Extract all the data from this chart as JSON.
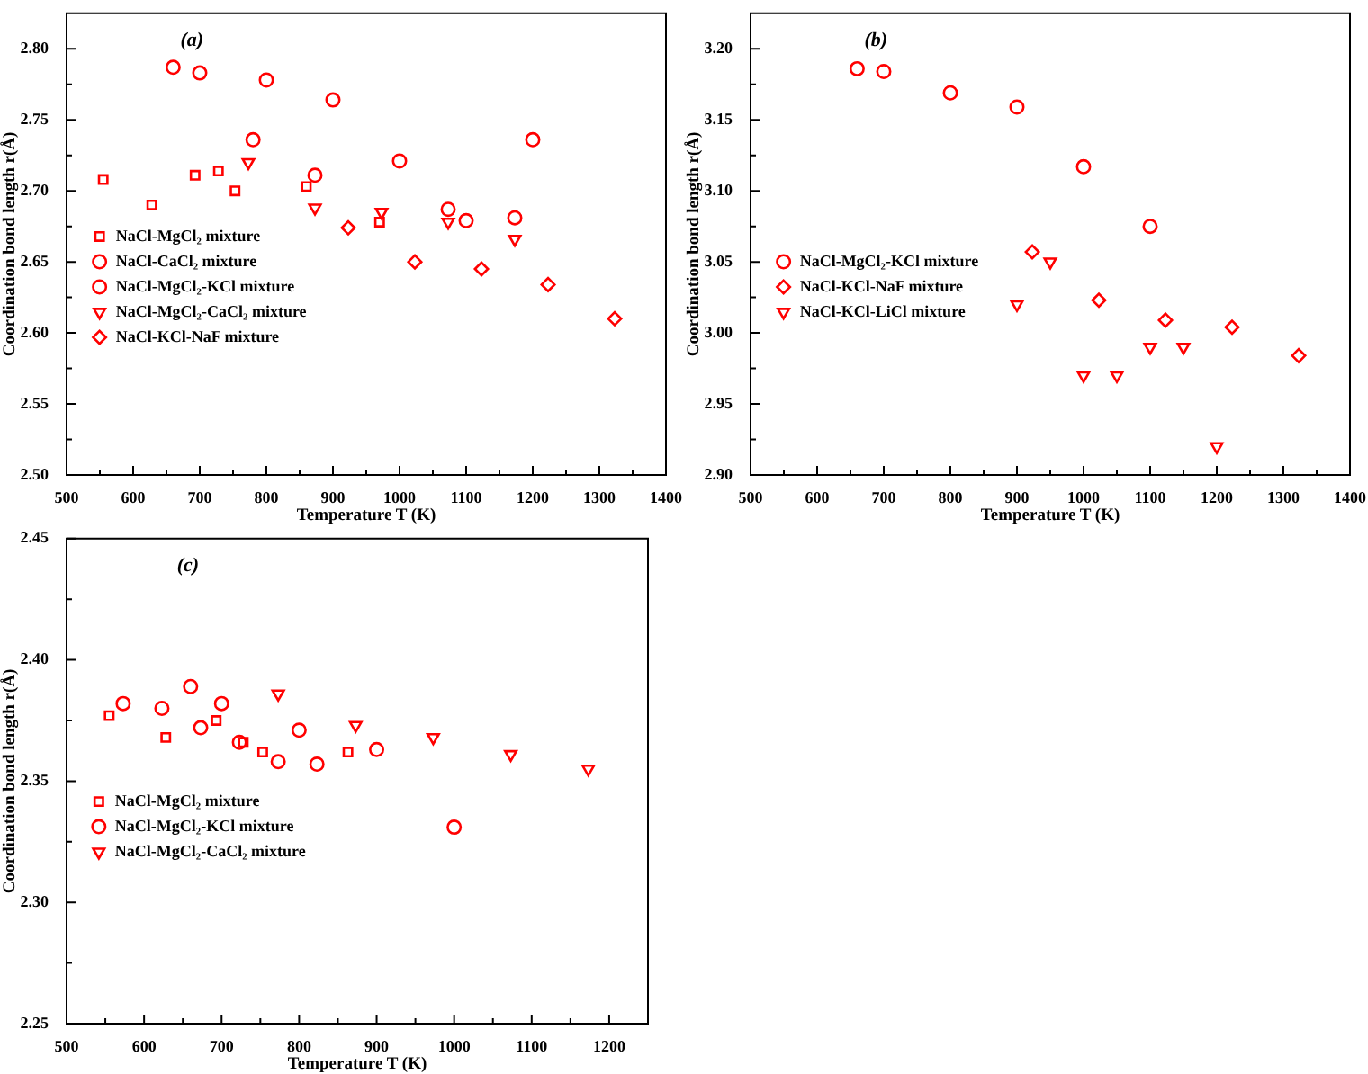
{
  "chart_data": [
    {
      "type": "scatter",
      "xlabel": "Temperature T (K)",
      "ylabel": "Coordination bond length r(Å)",
      "annotations": [
        "(a)"
      ],
      "legend": "left",
      "grid": false,
      "xlim": [
        500,
        1400
      ],
      "xticks": [
        500,
        {
          "value": 550,
          "label": null
        },
        600,
        {
          "value": 650,
          "label": null
        },
        700,
        {
          "value": 750,
          "label": null
        },
        800,
        {
          "value": 850,
          "label": null
        },
        900,
        {
          "value": 950,
          "label": null
        },
        1000,
        {
          "value": 1050,
          "label": null
        },
        1100,
        {
          "value": 1150,
          "label": null
        },
        1200,
        {
          "value": 1250,
          "label": null
        },
        1300,
        {
          "value": 1350,
          "label": null
        },
        1400
      ],
      "ylim": [
        2.5,
        2.825
      ],
      "yticks": [
        {
          "value": 2.5,
          "label": "2.50"
        },
        {
          "value": 2.525,
          "label": null
        },
        {
          "value": 2.55,
          "label": "2.55"
        },
        {
          "value": 2.575,
          "label": null
        },
        {
          "value": 2.6,
          "label": "2.60"
        },
        {
          "value": 2.625,
          "label": null
        },
        {
          "value": 2.65,
          "label": "2.65"
        },
        {
          "value": 2.675,
          "label": null
        },
        {
          "value": 2.7,
          "label": "2.70"
        },
        {
          "value": 2.725,
          "label": null
        },
        {
          "value": 2.75,
          "label": "2.75"
        },
        {
          "value": 2.775,
          "label": null
        },
        {
          "value": 2.8,
          "label": "2.80"
        }
      ],
      "series": [
        {
          "name": "NaCl-MgCl₂ mixture",
          "color": "#ff0000",
          "marker": "square",
          "x": [
            555,
            628,
            693,
            728,
            753,
            860,
            970
          ],
          "values": [
            2.708,
            2.69,
            2.711,
            2.714,
            2.7,
            2.703,
            2.678
          ]
        },
        {
          "name": "NaCl-CaCl₂ mixture",
          "color": "#ff0000",
          "marker": "circle",
          "x": [
            780,
            873,
            1073,
            1173
          ],
          "values": [
            2.736,
            2.711,
            2.687,
            2.681
          ]
        },
        {
          "name": "NaCl-MgCl₂-KCl mixture",
          "color": "#ff0000",
          "marker": "circle",
          "x": [
            660,
            700,
            800,
            900,
            1000,
            1100,
            1200
          ],
          "values": [
            2.787,
            2.783,
            2.778,
            2.764,
            2.721,
            2.679,
            2.736
          ]
        },
        {
          "name": "NaCl-MgCl₂-CaCl₂ mixture",
          "color": "#ff0000",
          "marker": "triangle",
          "x": [
            773,
            873,
            973,
            1073,
            1173
          ],
          "values": [
            2.72,
            2.688,
            2.685,
            2.678,
            2.666
          ]
        },
        {
          "name": "NaCl-KCl-NaF mixture",
          "color": "#ff0000",
          "marker": "diamond",
          "x": [
            923,
            1023,
            1123,
            1223,
            1323
          ],
          "values": [
            2.674,
            2.65,
            2.645,
            2.634,
            2.61
          ]
        }
      ]
    },
    {
      "type": "scatter",
      "xlabel": "Temperature T (K)",
      "ylabel": "Coordination bond length r(Å)",
      "annotations": [
        "(b)"
      ],
      "legend": "left",
      "grid": false,
      "xlim": [
        500,
        1400
      ],
      "xticks": [
        500,
        {
          "value": 550,
          "label": null
        },
        600,
        {
          "value": 650,
          "label": null
        },
        700,
        {
          "value": 750,
          "label": null
        },
        800,
        {
          "value": 850,
          "label": null
        },
        900,
        {
          "value": 950,
          "label": null
        },
        1000,
        {
          "value": 1050,
          "label": null
        },
        1100,
        {
          "value": 1150,
          "label": null
        },
        1200,
        {
          "value": 1250,
          "label": null
        },
        1300,
        {
          "value": 1350,
          "label": null
        },
        1400
      ],
      "ylim": [
        2.9,
        3.225
      ],
      "yticks": [
        {
          "value": 2.9,
          "label": "2.90"
        },
        {
          "value": 2.925,
          "label": null
        },
        {
          "value": 2.95,
          "label": "2.95"
        },
        {
          "value": 2.975,
          "label": null
        },
        {
          "value": 3.0,
          "label": "3.00"
        },
        {
          "value": 3.025,
          "label": null
        },
        {
          "value": 3.05,
          "label": "3.05"
        },
        {
          "value": 3.075,
          "label": null
        },
        {
          "value": 3.1,
          "label": "3.10"
        },
        {
          "value": 3.125,
          "label": null
        },
        {
          "value": 3.15,
          "label": "3.15"
        },
        {
          "value": 3.175,
          "label": null
        },
        {
          "value": 3.2,
          "label": "3.20"
        }
      ],
      "series": [
        {
          "name": "NaCl-MgCl₂-KCl mixture",
          "color": "#ff0000",
          "marker": "circle",
          "x": [
            660,
            700,
            800,
            900,
            1000,
            1100
          ],
          "values": [
            3.186,
            3.184,
            3.169,
            3.159,
            3.117,
            3.075
          ]
        },
        {
          "name": "NaCl-KCl-NaF mixture",
          "color": "#ff0000",
          "marker": "diamond",
          "x": [
            923,
            1023,
            1123,
            1223,
            1323
          ],
          "values": [
            3.057,
            3.023,
            3.009,
            3.004,
            2.984
          ]
        },
        {
          "name": "NaCl-KCl-LiCl mixture",
          "color": "#ff0000",
          "marker": "triangle",
          "x": [
            900,
            950,
            1000,
            1050,
            1100,
            1150,
            1200
          ],
          "values": [
            3.02,
            3.05,
            2.97,
            2.97,
            2.99,
            2.99,
            2.92
          ]
        }
      ]
    },
    {
      "type": "scatter",
      "xlabel": "Temperature T (K)",
      "ylabel": "Coordination bond length r(Å)",
      "annotations": [
        "(c)"
      ],
      "legend": "left",
      "grid": false,
      "xlim": [
        500,
        1250
      ],
      "xticks": [
        500,
        {
          "value": 550,
          "label": null
        },
        600,
        {
          "value": 650,
          "label": null
        },
        700,
        {
          "value": 750,
          "label": null
        },
        800,
        {
          "value": 850,
          "label": null
        },
        900,
        {
          "value": 950,
          "label": null
        },
        1000,
        {
          "value": 1050,
          "label": null
        },
        1100,
        {
          "value": 1150,
          "label": null
        },
        1200
      ],
      "ylim": [
        2.25,
        2.45
      ],
      "yticks": [
        {
          "value": 2.25,
          "label": "2.25"
        },
        {
          "value": 2.275,
          "label": null
        },
        {
          "value": 2.3,
          "label": "2.30"
        },
        {
          "value": 2.325,
          "label": null
        },
        {
          "value": 2.35,
          "label": "2.35"
        },
        {
          "value": 2.375,
          "label": null
        },
        {
          "value": 2.4,
          "label": "2.40"
        },
        {
          "value": 2.425,
          "label": null
        },
        {
          "value": 2.45,
          "label": "2.45"
        }
      ],
      "series": [
        {
          "name": "NaCl-MgCl₂ mixture",
          "color": "#ff0000",
          "marker": "square",
          "x": [
            555,
            628,
            693,
            728,
            753,
            863
          ],
          "values": [
            2.377,
            2.368,
            2.375,
            2.366,
            2.362,
            2.362
          ]
        },
        {
          "name": "NaCl-MgCl₂-KCl mixture",
          "color": "#ff0000",
          "marker": "circle",
          "x": [
            573,
            623,
            660,
            673,
            700,
            723,
            773,
            800,
            823,
            900,
            1000
          ],
          "values": [
            2.382,
            2.38,
            2.389,
            2.372,
            2.382,
            2.366,
            2.358,
            2.371,
            2.357,
            2.363,
            2.331
          ]
        },
        {
          "name": "NaCl-MgCl₂-CaCl₂ mixture",
          "color": "#ff0000",
          "marker": "triangle",
          "x": [
            773,
            873,
            973,
            1073,
            1173
          ],
          "values": [
            2.386,
            2.373,
            2.368,
            2.361,
            2.355
          ]
        }
      ]
    }
  ]
}
